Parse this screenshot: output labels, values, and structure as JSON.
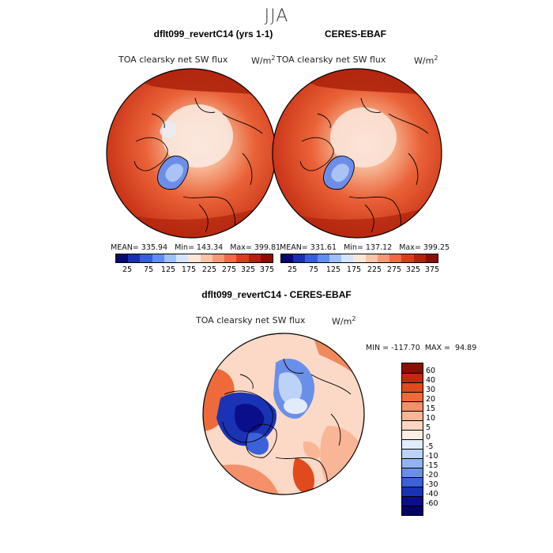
{
  "page": {
    "season": "JJA"
  },
  "panels": [
    {
      "title": "dflt099_revertC14 (yrs 1-1)",
      "variable": "TOA clearsky net SW flux",
      "units": "W/m",
      "units_exp": "2",
      "stats": "MEAN= 335.94   Min= 143.34   Max= 399.81"
    },
    {
      "title": "CERES-EBAF",
      "variable": "TOA clearsky net SW flux",
      "units": "W/m",
      "units_exp": "2",
      "stats": "MEAN= 331.61   Min= 137.12   Max= 399.25"
    }
  ],
  "diff": {
    "title": "dflt099_revertC14 - CERES-EBAF",
    "variable": "TOA clearsky net SW flux",
    "units": "W/m",
    "units_exp": "2",
    "minmax": "MIN = -117.70  MAX =  94.89"
  },
  "chart_data": [
    {
      "type": "map",
      "title": "dflt099_revertC14 (yrs 1-1)",
      "projection": "north-polar-stereographic",
      "mean": 335.94,
      "min": 143.34,
      "max": 399.81,
      "colorbar": {
        "levels": [
          25,
          75,
          125,
          175,
          225,
          275,
          325,
          375
        ]
      }
    },
    {
      "type": "map",
      "title": "CERES-EBAF",
      "projection": "north-polar-stereographic",
      "mean": 331.61,
      "min": 137.12,
      "max": 399.25,
      "colorbar": {
        "levels": [
          25,
          75,
          125,
          175,
          225,
          275,
          325,
          375
        ]
      }
    },
    {
      "type": "map",
      "title": "dflt099_revertC14 - CERES-EBAF",
      "projection": "north-polar-stereographic",
      "min": -117.7,
      "max": 94.89,
      "colorbar": {
        "levels": [
          "60",
          "40",
          "30",
          "20",
          "15",
          "10",
          "5",
          "0",
          "-5",
          "-10",
          "-15",
          "-20",
          "-30",
          "-40",
          "-60"
        ]
      }
    }
  ],
  "colors": {
    "abs_scale": [
      "#08086e",
      "#1a2fb0",
      "#3560d8",
      "#5f8ef0",
      "#9cc0f7",
      "#d4e4fb",
      "#fbe6da",
      "#f9c4a8",
      "#f59a76",
      "#ee6b45",
      "#dd3c1c",
      "#b81f0c",
      "#8b0e04"
    ],
    "diff_scale": [
      "#8b0e04",
      "#c02a10",
      "#e04a1c",
      "#ef6a3a",
      "#f5906a",
      "#f9b697",
      "#fcd6c2",
      "#fdeee4",
      "#e1ecfb",
      "#bcd2f6",
      "#93b3f0",
      "#6a8fe8",
      "#3c61d9",
      "#1a33b4",
      "#0a0e8a",
      "#040466"
    ]
  }
}
